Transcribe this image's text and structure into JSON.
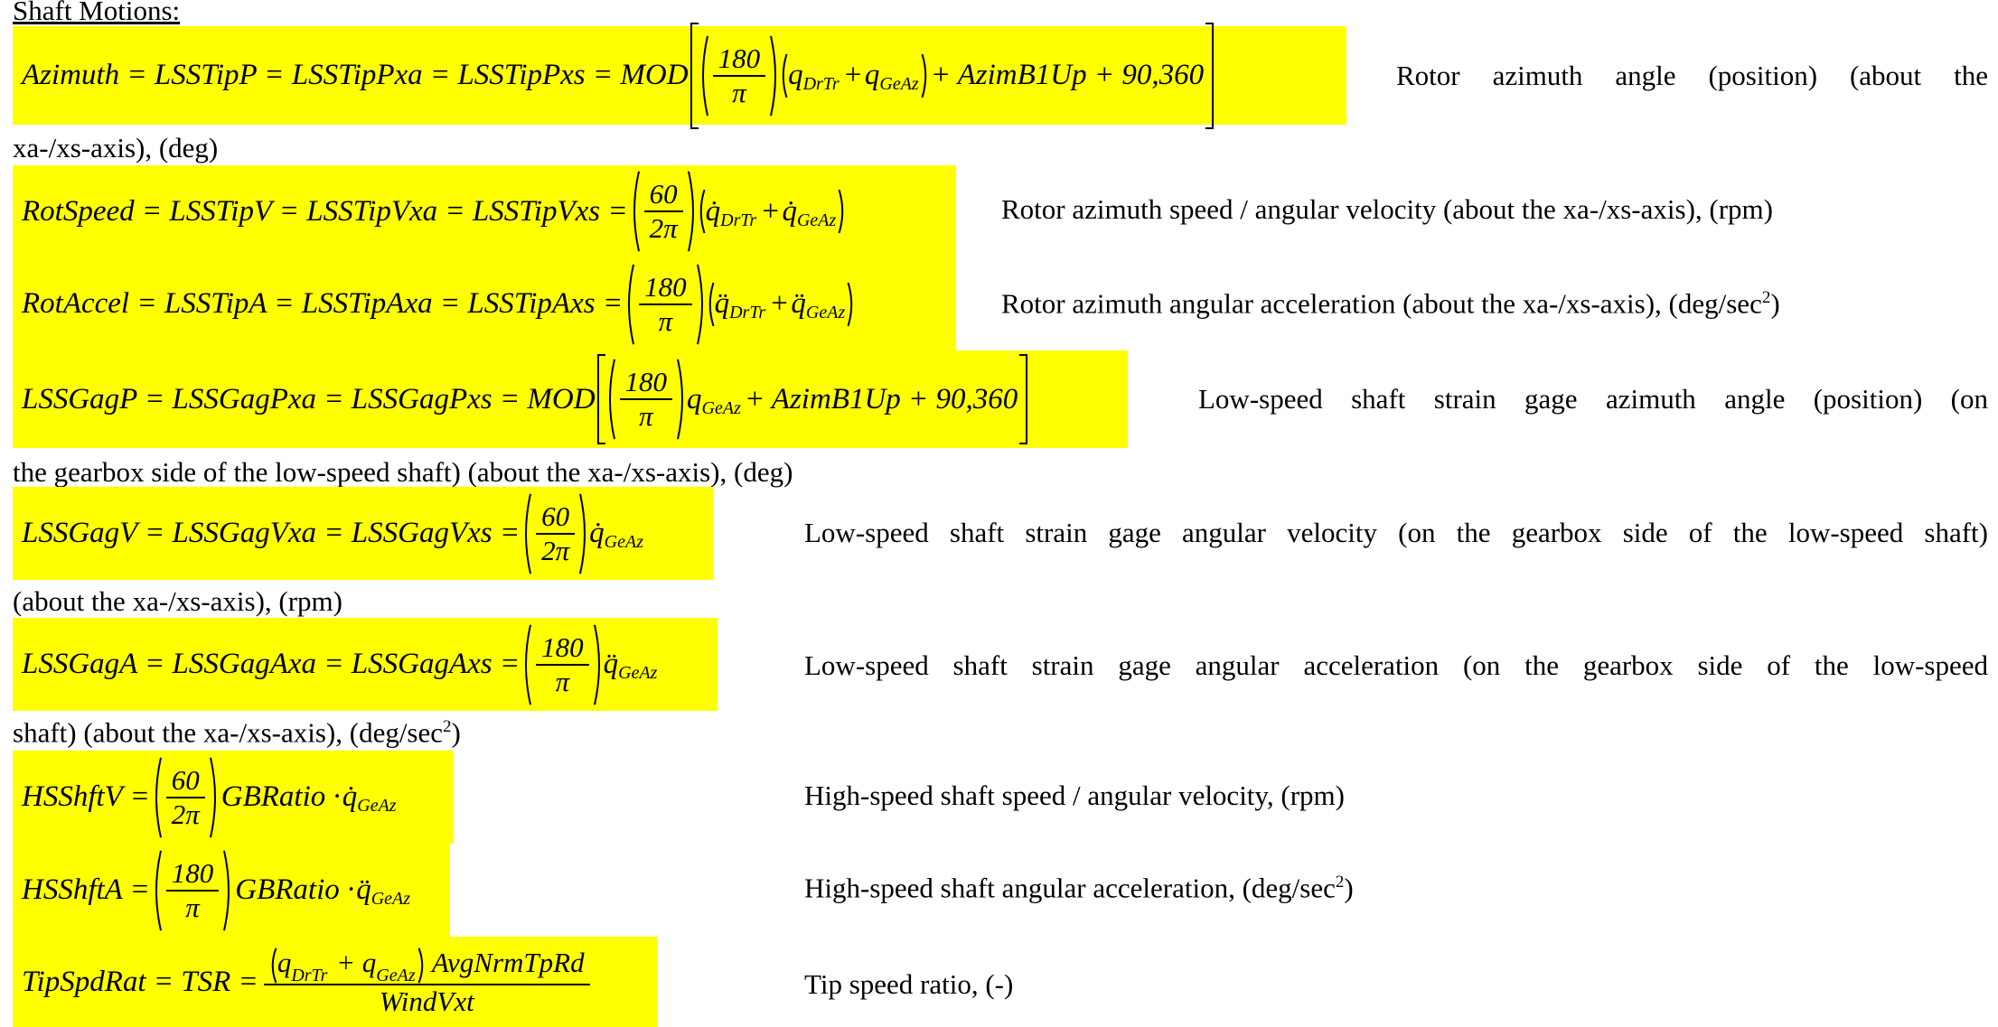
{
  "section_title": "Shaft Motions:",
  "highlight_color": "#ffff00",
  "eq1": {
    "lhs": "Azimuth = LSSTipP = LSSTipPxa = LSSTipPxs = MOD",
    "num": "180",
    "den": "π",
    "q1": "q",
    "s1": "DrTr",
    "plus": "+",
    "q2": "q",
    "s2": "GeAz",
    "tail": "+ AzimB1Up + 90,360",
    "desc_line1": "Rotor azimuth angle (position) (about the",
    "desc_line2": "xa-/xs-axis), (deg)"
  },
  "eq2": {
    "lhs": "RotSpeed = LSSTipV = LSSTipVxa = LSSTipVxs =",
    "num": "60",
    "den": "2π",
    "q1": "q̇",
    "s1": "DrTr",
    "plus": "+",
    "q2": "q̇",
    "s2": "GeAz",
    "desc": "Rotor azimuth speed / angular velocity (about the xa-/xs-axis), (rpm)"
  },
  "eq3": {
    "lhs": "RotAccel = LSSTipA = LSSTipAxa = LSSTipAxs =",
    "num": "180",
    "den": "π",
    "q1": "q̈",
    "s1": "DrTr",
    "plus": "+",
    "q2": "q̈",
    "s2": "GeAz",
    "desc": "Rotor azimuth angular acceleration (about the xa-/xs-axis), (deg/sec",
    "desc_sup": "2",
    "desc_end": ")"
  },
  "eq4": {
    "lhs": "LSSGagP = LSSGagPxa = LSSGagPxs = MOD",
    "num": "180",
    "den": "π",
    "q": "q",
    "s": "GeAz",
    "tail": "+ AzimB1Up + 90,360",
    "desc_line1": "Low-speed shaft strain gage azimuth angle (position) (on",
    "desc_line2": "the gearbox side of the low-speed shaft) (about the xa-/xs-axis), (deg)"
  },
  "eq5": {
    "lhs": "LSSGagV = LSSGagVxa = LSSGagVxs =",
    "num": "60",
    "den": "2π",
    "q": "q̇",
    "s": "GeAz",
    "desc_line1": "Low-speed shaft strain gage angular velocity (on the gearbox side of the low-speed shaft)",
    "desc_line2": "(about the xa-/xs-axis), (rpm)"
  },
  "eq6": {
    "lhs": "LSSGagA = LSSGagAxa = LSSGagAxs =",
    "num": "180",
    "den": "π",
    "q": "q̈",
    "s": "GeAz",
    "desc_line1": "Low-speed shaft strain gage angular acceleration (on the gearbox side of the low-speed",
    "desc_line2": "shaft) (about the xa-/xs-axis), (deg/sec",
    "desc_sup": "2",
    "desc_end": ")"
  },
  "eq7": {
    "lhs": "HSShftV =",
    "num": "60",
    "den": "2π",
    "mid": "GBRatio ·",
    "q": "q̇",
    "s": "GeAz",
    "desc": "High-speed shaft speed / angular velocity, (rpm)"
  },
  "eq8": {
    "lhs": "HSShftA =",
    "num": "180",
    "den": "π",
    "mid": "GBRatio ·",
    "q": "q̈",
    "s": "GeAz",
    "desc": "High-speed shaft angular acceleration, (deg/sec",
    "desc_sup": "2",
    "desc_end": ")"
  },
  "eq9": {
    "lhs": "TipSpdRat = TSR =",
    "q1": "q",
    "s1": "DrTr",
    "plus": "+",
    "q2": "q",
    "s2": "GeAz",
    "num_tail": "AvgNrmTpRd",
    "den": "WindVxt",
    "desc": "Tip speed ratio, (-)"
  }
}
